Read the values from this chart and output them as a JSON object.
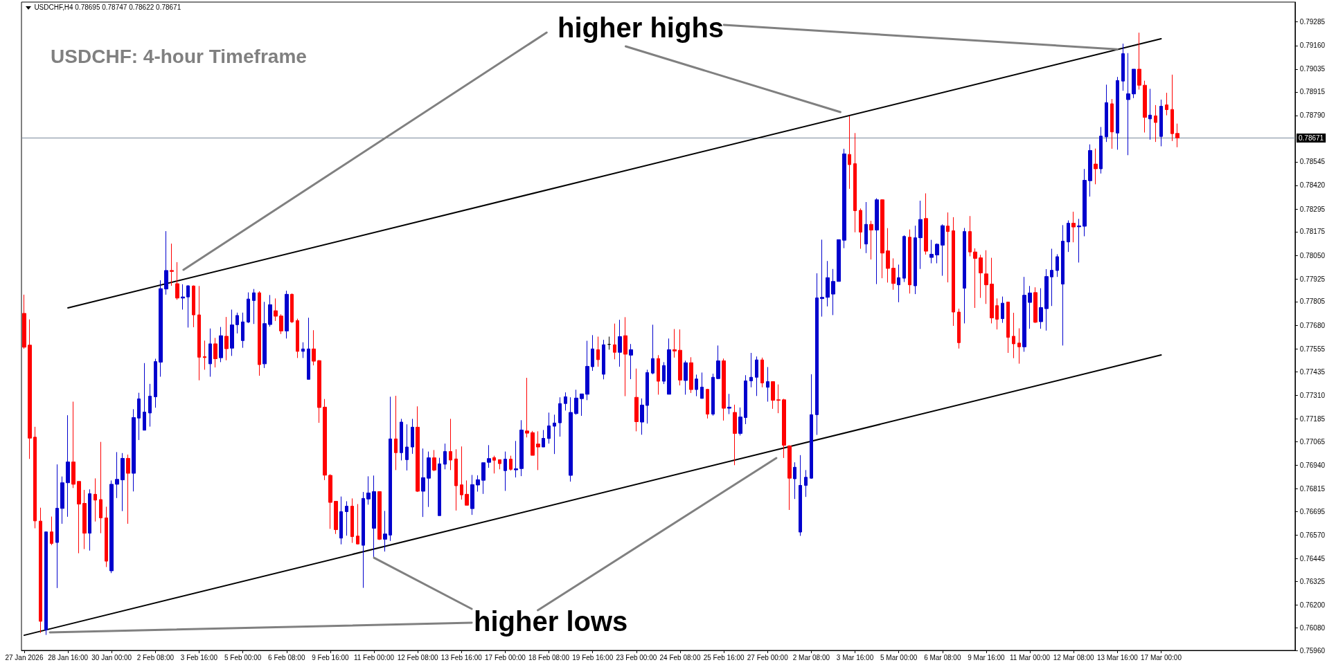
{
  "chart_data": {
    "type": "candlestick",
    "title": "USDCHF: 4-hour Timeframe",
    "annotations": [
      "USDCHF,H4 0.78695 0.78747 0.78622 0.78671",
      {
        "text": "higher highs",
        "x": "13 Mar 16:00",
        "y": 0.7914
      },
      {
        "text": "higher lows",
        "x": "11 Feb 00:00",
        "y": 0.7645
      }
    ],
    "categories": [
      "27 Jan 2026",
      null,
      null,
      null,
      null,
      null,
      null,
      null,
      "28 Jan 16:00",
      null,
      null,
      null,
      null,
      null,
      null,
      null,
      "30 Jan 00:00",
      null,
      null,
      null,
      null,
      null,
      null,
      null,
      "2 Feb 08:00",
      null,
      null,
      null,
      null,
      null,
      null,
      null,
      "3 Feb 16:00",
      null,
      null,
      null,
      null,
      null,
      null,
      null,
      "5 Feb 00:00",
      null,
      null,
      null,
      null,
      null,
      null,
      null,
      "6 Feb 08:00",
      null,
      null,
      null,
      null,
      null,
      null,
      null,
      "9 Feb 16:00",
      null,
      null,
      null,
      null,
      null,
      null,
      null,
      "11 Feb 00:00",
      null,
      null,
      null,
      null,
      null,
      null,
      null,
      "12 Feb 08:00",
      null,
      null,
      null,
      null,
      null,
      null,
      null,
      "13 Feb 16:00",
      null,
      null,
      null,
      null,
      null,
      null,
      null,
      "17 Feb 00:00",
      null,
      null,
      null,
      null,
      null,
      null,
      null,
      "18 Feb 08:00",
      null,
      null,
      null,
      null,
      null,
      null,
      null,
      "19 Feb 16:00",
      null,
      null,
      null,
      null,
      null,
      null,
      null,
      "23 Feb 00:00",
      null,
      null,
      null,
      null,
      null,
      null,
      null,
      "24 Feb 08:00",
      null,
      null,
      null,
      null,
      null,
      null,
      null,
      "25 Feb 16:00",
      null,
      null,
      null,
      null,
      null,
      null,
      null,
      "27 Feb 00:00",
      null,
      null,
      null,
      null,
      null,
      null,
      null,
      "2 Mar 08:00",
      null,
      null,
      null,
      null,
      null,
      null,
      null,
      "3 Mar 16:00",
      null,
      null,
      null,
      null,
      null,
      null,
      null,
      "5 Mar 00:00",
      null,
      null,
      null,
      null,
      null,
      null,
      null,
      "6 Mar 08:00",
      null,
      null,
      null,
      null,
      null,
      null,
      null,
      "9 Mar 16:00",
      null,
      null,
      null,
      null,
      null,
      null,
      null,
      "11 Mar 00:00",
      null,
      null,
      null,
      null,
      null,
      null,
      null,
      "12 Mar 08:00",
      null,
      null,
      null,
      null,
      null,
      null,
      null,
      "13 Mar 16:00",
      null,
      null,
      null,
      null,
      null,
      null,
      null,
      "17 Mar 00:00",
      null,
      null,
      null,
      null,
      null,
      null,
      null,
      null,
      null,
      null,
      null,
      null,
      null,
      null,
      null,
      null,
      null,
      null,
      null,
      null,
      null,
      null,
      null,
      null
    ],
    "ohlc": [
      [
        0.77743,
        0.77842,
        0.77556,
        0.77564
      ],
      [
        0.77575,
        0.77711,
        0.76973,
        0.77083
      ],
      [
        0.77088,
        0.77143,
        0.76606,
        0.76645
      ],
      [
        0.76644,
        0.76715,
        0.76053,
        0.76114
      ],
      [
        0.76068,
        0.76587,
        0.76042,
        0.76587
      ],
      [
        0.76587,
        0.76668,
        0.76517,
        0.76526
      ],
      [
        0.76531,
        0.76944,
        0.7629,
        0.76712
      ],
      [
        0.76711,
        0.7688,
        0.7663,
        0.76847
      ],
      [
        0.76847,
        0.77204,
        0.76667,
        0.76957
      ],
      [
        0.76957,
        0.77276,
        0.76819,
        0.76839
      ],
      [
        0.76854,
        0.76854,
        0.76474,
        0.76734
      ],
      [
        0.76738,
        0.76809,
        0.76496,
        0.7658
      ],
      [
        0.7658,
        0.76812,
        0.76488,
        0.76789
      ],
      [
        0.76786,
        0.7687,
        0.76642,
        0.76755
      ],
      [
        0.76758,
        0.77063,
        0.7658,
        0.76661
      ],
      [
        0.76661,
        0.7672,
        0.76401,
        0.76432
      ],
      [
        0.76381,
        0.76859,
        0.76369,
        0.76839
      ],
      [
        0.76839,
        0.77009,
        0.76766,
        0.76865
      ],
      [
        0.76862,
        0.77004,
        0.76697,
        0.76976
      ],
      [
        0.76976,
        0.76996,
        0.7663,
        0.76897
      ],
      [
        0.76897,
        0.77236,
        0.76801,
        0.77192
      ],
      [
        0.77189,
        0.77323,
        0.77073,
        0.77291
      ],
      [
        0.77125,
        0.7748,
        0.77125,
        0.77221
      ],
      [
        0.77216,
        0.7737,
        0.77144,
        0.77305
      ],
      [
        0.77302,
        0.77503,
        0.77244,
        0.77488
      ],
      [
        0.77485,
        0.77918,
        0.77408,
        0.77874
      ],
      [
        0.77872,
        0.78178,
        0.77842,
        0.7797
      ],
      [
        0.7797,
        0.78112,
        0.77889,
        0.77965
      ],
      [
        0.779,
        0.78014,
        0.77815,
        0.77824
      ],
      [
        0.77824,
        0.77897,
        0.77763,
        0.7783
      ],
      [
        0.7783,
        0.77891,
        0.77668,
        0.77889
      ],
      [
        0.77888,
        0.77891,
        0.7767,
        0.77735
      ],
      [
        0.77735,
        0.77888,
        0.77389,
        0.77511
      ],
      [
        0.77514,
        0.77599,
        0.77445,
        0.77509
      ],
      [
        0.77476,
        0.77663,
        0.77408,
        0.77582
      ],
      [
        0.77582,
        0.77613,
        0.77457,
        0.77503
      ],
      [
        0.77508,
        0.77671,
        0.77485,
        0.77625
      ],
      [
        0.77622,
        0.77724,
        0.77495,
        0.77556
      ],
      [
        0.77559,
        0.77763,
        0.77518,
        0.77682
      ],
      [
        0.77683,
        0.77747,
        0.77637,
        0.77732
      ],
      [
        0.77599,
        0.77747,
        0.77561,
        0.77698
      ],
      [
        0.77697,
        0.77854,
        0.77692,
        0.77819
      ],
      [
        0.77811,
        0.77872,
        0.77687,
        0.77852
      ],
      [
        0.77852,
        0.7786,
        0.77413,
        0.77472
      ],
      [
        0.77476,
        0.77804,
        0.77454,
        0.77689
      ],
      [
        0.77684,
        0.7784,
        0.77673,
        0.77789
      ],
      [
        0.77757,
        0.77822,
        0.77703,
        0.77728
      ],
      [
        0.77729,
        0.77738,
        0.77634,
        0.7765
      ],
      [
        0.7765,
        0.77863,
        0.7761,
        0.77844
      ],
      [
        0.77844,
        0.77848,
        0.77692,
        0.77698
      ],
      [
        0.77705,
        0.77715,
        0.77507,
        0.77542
      ],
      [
        0.77542,
        0.7759,
        0.77507,
        0.77555
      ],
      [
        0.77394,
        0.7772,
        0.77394,
        0.77555
      ],
      [
        0.77555,
        0.77654,
        0.77468,
        0.7749
      ],
      [
        0.77493,
        0.77496,
        0.77164,
        0.77245
      ],
      [
        0.77247,
        0.7729,
        0.76861,
        0.76887
      ],
      [
        0.76886,
        0.76892,
        0.76603,
        0.76743
      ],
      [
        0.76749,
        0.76749,
        0.76576,
        0.76599
      ],
      [
        0.76554,
        0.76774,
        0.76521,
        0.76694
      ],
      [
        0.76694,
        0.76749,
        0.76567,
        0.76723
      ],
      [
        0.76723,
        0.76764,
        0.76529,
        0.76562
      ],
      [
        0.76565,
        0.76734,
        0.76521,
        0.76523
      ],
      [
        0.76516,
        0.76798,
        0.76291,
        0.76764
      ],
      [
        0.76761,
        0.76881,
        0.76731,
        0.76793
      ],
      [
        0.76606,
        0.76885,
        0.7645,
        0.768
      ],
      [
        0.768,
        0.768,
        0.76544,
        0.76548
      ],
      [
        0.76548,
        0.76698,
        0.76483,
        0.76576
      ],
      [
        0.7657,
        0.77302,
        0.76539,
        0.77079
      ],
      [
        0.77079,
        0.77307,
        0.76914,
        0.77006
      ],
      [
        0.77006,
        0.77185,
        0.76965,
        0.77168
      ],
      [
        0.76969,
        0.77156,
        0.76912,
        0.77036
      ],
      [
        0.77036,
        0.77185,
        0.77,
        0.77141
      ],
      [
        0.77141,
        0.77251,
        0.76798,
        0.76802
      ],
      [
        0.76802,
        0.77028,
        0.76666,
        0.76874
      ],
      [
        0.76871,
        0.77012,
        0.76719,
        0.76979
      ],
      [
        0.76979,
        0.7702,
        0.76908,
        0.76914
      ],
      [
        0.76673,
        0.76979,
        0.76673,
        0.76947
      ],
      [
        0.76945,
        0.77054,
        0.76918,
        0.77012
      ],
      [
        0.77012,
        0.77185,
        0.76914,
        0.76967
      ],
      [
        0.76973,
        0.77024,
        0.767,
        0.76831
      ],
      [
        0.76836,
        0.77039,
        0.76758,
        0.76783
      ],
      [
        0.76786,
        0.76859,
        0.76728,
        0.76728
      ],
      [
        0.7671,
        0.76888,
        0.76677,
        0.76837
      ],
      [
        0.76835,
        0.76886,
        0.768,
        0.76863
      ],
      [
        0.7686,
        0.76953,
        0.76788,
        0.76953
      ],
      [
        0.76955,
        0.77046,
        0.76926,
        0.76975
      ],
      [
        0.7698,
        0.7699,
        0.76896,
        0.76966
      ],
      [
        0.76969,
        0.76969,
        0.76918,
        0.76948
      ],
      [
        0.76911,
        0.77012,
        0.76804,
        0.76972
      ],
      [
        0.76972,
        0.7699,
        0.76911,
        0.76918
      ],
      [
        0.76915,
        0.77068,
        0.76875,
        0.76921
      ],
      [
        0.76922,
        0.77178,
        0.76882,
        0.77126
      ],
      [
        0.77121,
        0.77402,
        0.77087,
        0.77109
      ],
      [
        0.77112,
        0.77121,
        0.76992,
        0.76992
      ],
      [
        0.77052,
        0.77119,
        0.76914,
        0.77036
      ],
      [
        0.77036,
        0.77126,
        0.77036,
        0.77082
      ],
      [
        0.77081,
        0.77218,
        0.77054,
        0.77148
      ],
      [
        0.77146,
        0.77207,
        0.76999,
        0.77163
      ],
      [
        0.77164,
        0.77299,
        0.77091,
        0.77266
      ],
      [
        0.77266,
        0.77325,
        0.77229,
        0.77302
      ],
      [
        0.76886,
        0.77299,
        0.76853,
        0.77219
      ],
      [
        0.77213,
        0.77339,
        0.77207,
        0.77295
      ],
      [
        0.77292,
        0.77317,
        0.77201,
        0.77317
      ],
      [
        0.77315,
        0.77598,
        0.77284,
        0.77463
      ],
      [
        0.77461,
        0.77628,
        0.77439,
        0.77555
      ],
      [
        0.77551,
        0.7762,
        0.77461,
        0.77498
      ],
      [
        0.77421,
        0.77603,
        0.77394,
        0.77577
      ],
      [
        0.77579,
        0.7762,
        0.77551,
        0.77579
      ],
      [
        0.77577,
        0.77689,
        0.775,
        0.77537
      ],
      [
        0.77537,
        0.77709,
        0.77461,
        0.7762
      ],
      [
        0.77625,
        0.77723,
        0.77305,
        0.77527
      ],
      [
        0.77522,
        0.77581,
        0.77395,
        0.77551
      ],
      [
        0.77299,
        0.77451,
        0.77119,
        0.7717
      ],
      [
        0.77168,
        0.77293,
        0.77101,
        0.77258
      ],
      [
        0.77256,
        0.77445,
        0.7716,
        0.7743
      ],
      [
        0.77427,
        0.77683,
        0.77421,
        0.77504
      ],
      [
        0.77504,
        0.77522,
        0.77313,
        0.77384
      ],
      [
        0.77384,
        0.77485,
        0.77369,
        0.77467
      ],
      [
        0.77315,
        0.7761,
        0.77315,
        0.77551
      ],
      [
        0.77551,
        0.7766,
        0.77509,
        0.77544
      ],
      [
        0.77548,
        0.77658,
        0.77362,
        0.7739
      ],
      [
        0.77388,
        0.77493,
        0.77313,
        0.77482
      ],
      [
        0.77482,
        0.77511,
        0.77322,
        0.7734
      ],
      [
        0.7734,
        0.77419,
        0.77305,
        0.77396
      ],
      [
        0.77293,
        0.7743,
        0.77293,
        0.77353
      ],
      [
        0.77341,
        0.77344,
        0.77187,
        0.7721
      ],
      [
        0.7721,
        0.77424,
        0.77202,
        0.77405
      ],
      [
        0.77398,
        0.77573,
        0.77395,
        0.77492
      ],
      [
        0.77492,
        0.77504,
        0.77176,
        0.77241
      ],
      [
        0.77241,
        0.77317,
        0.7721,
        0.77247
      ],
      [
        0.77219,
        0.7726,
        0.7694,
        0.77108
      ],
      [
        0.77108,
        0.77245,
        0.77097,
        0.77195
      ],
      [
        0.77192,
        0.77416,
        0.77157,
        0.77386
      ],
      [
        0.77386,
        0.77534,
        0.77352,
        0.77405
      ],
      [
        0.77405,
        0.77515,
        0.77306,
        0.77497
      ],
      [
        0.77497,
        0.77509,
        0.77352,
        0.77375
      ],
      [
        0.77352,
        0.77459,
        0.77276,
        0.77382
      ],
      [
        0.77382,
        0.77382,
        0.77238,
        0.77283
      ],
      [
        0.77286,
        0.77367,
        0.77215,
        0.77283
      ],
      [
        0.77286,
        0.77291,
        0.76978,
        0.77045
      ],
      [
        0.77042,
        0.77045,
        0.76703,
        0.76871
      ],
      [
        0.76868,
        0.76955,
        0.76761,
        0.76929
      ],
      [
        0.76586,
        0.76993,
        0.76566,
        0.76833
      ],
      [
        0.76833,
        0.76914,
        0.76772,
        0.76876
      ],
      [
        0.76871,
        0.77421,
        0.76868,
        0.77207
      ],
      [
        0.77207,
        0.77955,
        0.771,
        0.77825
      ],
      [
        0.77821,
        0.78133,
        0.77726,
        0.77828
      ],
      [
        0.77828,
        0.7802,
        0.7778,
        0.77932
      ],
      [
        0.77845,
        0.77978,
        0.77734,
        0.77912
      ],
      [
        0.77912,
        0.78133,
        0.77912,
        0.78133
      ],
      [
        0.7813,
        0.78614,
        0.78088,
        0.78587
      ],
      [
        0.78584,
        0.78787,
        0.78402,
        0.7853
      ],
      [
        0.78535,
        0.78697,
        0.78172,
        0.78286
      ],
      [
        0.78288,
        0.78298,
        0.78085,
        0.78173
      ],
      [
        0.7811,
        0.78332,
        0.78062,
        0.78214
      ],
      [
        0.78214,
        0.78233,
        0.78028,
        0.78184
      ],
      [
        0.78184,
        0.78352,
        0.77898,
        0.78344
      ],
      [
        0.78344,
        0.78347,
        0.77929,
        0.78062
      ],
      [
        0.78074,
        0.78194,
        0.77906,
        0.77981
      ],
      [
        0.77982,
        0.78034,
        0.77868,
        0.77901
      ],
      [
        0.77894,
        0.78001,
        0.77802,
        0.77932
      ],
      [
        0.77929,
        0.78156,
        0.77909,
        0.7815
      ],
      [
        0.78146,
        0.78187,
        0.77848,
        0.77894
      ],
      [
        0.77889,
        0.78207,
        0.77845,
        0.78143
      ],
      [
        0.78143,
        0.78339,
        0.77978,
        0.7824
      ],
      [
        0.78245,
        0.78378,
        0.78054,
        0.78072
      ],
      [
        0.78039,
        0.78132,
        0.78008,
        0.78056
      ],
      [
        0.78052,
        0.78113,
        0.78008,
        0.78109
      ],
      [
        0.78104,
        0.78214,
        0.77942,
        0.78207
      ],
      [
        0.78205,
        0.78277,
        0.77907,
        0.78176
      ],
      [
        0.7818,
        0.78252,
        0.77677,
        0.7775
      ],
      [
        0.7775,
        0.77768,
        0.77557,
        0.77588
      ],
      [
        0.77876,
        0.78195,
        0.7769,
        0.78176
      ],
      [
        0.78176,
        0.78258,
        0.78045,
        0.78068
      ],
      [
        0.78068,
        0.78087,
        0.77772,
        0.78034
      ],
      [
        0.78037,
        0.78053,
        0.77825,
        0.77957
      ],
      [
        0.77952,
        0.78077,
        0.77793,
        0.77894
      ],
      [
        0.77898,
        0.78037,
        0.7769,
        0.77719
      ],
      [
        0.77784,
        0.77822,
        0.77658,
        0.77712
      ],
      [
        0.77715,
        0.77832,
        0.77693,
        0.77797
      ],
      [
        0.77803,
        0.77803,
        0.77534,
        0.77616
      ],
      [
        0.77622,
        0.77746,
        0.77506,
        0.77582
      ],
      [
        0.77586,
        0.77664,
        0.77477,
        0.77566
      ],
      [
        0.77566,
        0.77936,
        0.7754,
        0.77839
      ],
      [
        0.77801,
        0.77888,
        0.77662,
        0.77851
      ],
      [
        0.77853,
        0.77881,
        0.77692,
        0.77696
      ],
      [
        0.77699,
        0.77876,
        0.77662,
        0.77774
      ],
      [
        0.77768,
        0.77977,
        0.77652,
        0.77938
      ],
      [
        0.77936,
        0.78085,
        0.77782,
        0.77971
      ],
      [
        0.7797,
        0.78056,
        0.77936,
        0.78043
      ],
      [
        0.77898,
        0.7821,
        0.77573,
        0.78125
      ],
      [
        0.78121,
        0.78235,
        0.78068,
        0.7822
      ],
      [
        0.7822,
        0.78281,
        0.78119,
        0.782
      ],
      [
        0.78201,
        0.78243,
        0.78012,
        0.78206
      ],
      [
        0.78204,
        0.78507,
        0.78151,
        0.78447
      ],
      [
        0.78445,
        0.78637,
        0.78361,
        0.78605
      ],
      [
        0.78533,
        0.78615,
        0.78426,
        0.78508
      ],
      [
        0.78508,
        0.78729,
        0.78483,
        0.78681
      ],
      [
        0.78677,
        0.78953,
        0.7865,
        0.78858
      ],
      [
        0.78852,
        0.78877,
        0.78614,
        0.78703
      ],
      [
        0.78697,
        0.78994,
        0.78609,
        0.78975
      ],
      [
        0.78972,
        0.7917,
        0.78921,
        0.79117
      ],
      [
        0.78874,
        0.7912,
        0.7858,
        0.78905
      ],
      [
        0.78904,
        0.79035,
        0.78882,
        0.79035
      ],
      [
        0.79035,
        0.79228,
        0.78927,
        0.7895
      ],
      [
        0.7895,
        0.78974,
        0.787,
        0.7878
      ],
      [
        0.78772,
        0.78931,
        0.78662,
        0.78792
      ],
      [
        0.78788,
        0.78845,
        0.7865,
        0.78753
      ],
      [
        0.78679,
        0.78874,
        0.78627,
        0.78839
      ],
      [
        0.78846,
        0.7891,
        0.78791,
        0.78821
      ],
      [
        0.78822,
        0.79006,
        0.78655,
        0.78694
      ],
      [
        0.78695,
        0.78747,
        0.78622,
        0.78671
      ],
      null,
      null,
      null,
      null,
      null,
      null,
      null,
      null,
      null,
      null,
      null,
      null,
      null,
      null,
      null,
      null,
      null,
      null,
      null,
      null,
      null
    ],
    "colors": [
      "#ff0000",
      "#ff0000",
      "#ff0000",
      "#ff0000",
      "#0000cd",
      "#ff0000",
      "#0000cd",
      "#0000cd",
      "#0000cd",
      "#ff0000",
      "#ff0000",
      "#ff0000",
      "#0000cd",
      "#ff0000",
      "#ff0000",
      "#ff0000",
      "#0000cd",
      "#0000cd",
      "#0000cd",
      "#ff0000",
      "#0000cd",
      "#0000cd",
      "#0000cd",
      "#0000cd",
      "#0000cd",
      "#0000cd",
      "#0000cd",
      "#ff0000",
      "#ff0000",
      "#0000cd",
      "#0000cd",
      "#ff0000",
      "#ff0000",
      "#ff0000",
      "#0000cd",
      "#ff0000",
      "#0000cd",
      "#ff0000",
      "#0000cd",
      "#0000cd",
      "#0000cd",
      "#0000cd",
      "#0000cd",
      "#ff0000",
      "#0000cd",
      "#0000cd",
      "#ff0000",
      "#ff0000",
      "#0000cd",
      "#ff0000",
      "#ff0000",
      "#0000cd",
      "#0000cd",
      "#ff0000",
      "#ff0000",
      "#ff0000",
      "#ff0000",
      "#ff0000",
      "#0000cd",
      "#0000cd",
      "#ff0000",
      "#ff0000",
      "#0000cd",
      "#0000cd",
      "#0000cd",
      "#ff0000",
      "#0000cd",
      "#0000cd",
      "#ff0000",
      "#0000cd",
      "#0000cd",
      "#0000cd",
      "#ff0000",
      "#0000cd",
      "#0000cd",
      "#ff0000",
      "#0000cd",
      "#0000cd",
      "#ff0000",
      "#ff0000",
      "#ff0000",
      "#ff0000",
      "#0000cd",
      "#0000cd",
      "#0000cd",
      "#0000cd",
      "#ff0000",
      "#ff0000",
      "#0000cd",
      "#ff0000",
      "#0000cd",
      "#0000cd",
      "#ff0000",
      "#ff0000",
      "#ff0000",
      "#0000cd",
      "#0000cd",
      "#0000cd",
      "#0000cd",
      "#0000cd",
      "#0000cd",
      "#0000cd",
      "#0000cd",
      "#0000cd",
      "#0000cd",
      "#ff0000",
      "#0000cd",
      "#000000",
      "#ff0000",
      "#0000cd",
      "#ff0000",
      "#0000cd",
      "#ff0000",
      "#0000cd",
      "#0000cd",
      "#0000cd",
      "#ff0000",
      "#0000cd",
      "#0000cd",
      "#ff0000",
      "#ff0000",
      "#0000cd",
      "#ff0000",
      "#0000cd",
      "#0000cd",
      "#ff0000",
      "#0000cd",
      "#0000cd",
      "#ff0000",
      "#0000cd",
      "#ff0000",
      "#0000cd",
      "#0000cd",
      "#0000cd",
      "#0000cd",
      "#ff0000",
      "#0000cd",
      "#ff0000",
      "#ff0000",
      "#ff0000",
      "#ff0000",
      "#0000cd",
      "#0000cd",
      "#0000cd",
      "#0000cd",
      "#0000cd",
      "#0000cd",
      "#0000cd",
      "#0000cd",
      "#0000cd",
      "#0000cd",
      "#ff0000",
      "#ff0000",
      "#ff0000",
      "#0000cd",
      "#ff0000",
      "#0000cd",
      "#ff0000",
      "#ff0000",
      "#ff0000",
      "#0000cd",
      "#0000cd",
      "#ff0000",
      "#0000cd",
      "#0000cd",
      "#ff0000",
      "#0000cd",
      "#0000cd",
      "#0000cd",
      "#ff0000",
      "#ff0000",
      "#ff0000",
      "#0000cd",
      "#ff0000",
      "#ff0000",
      "#ff0000",
      "#ff0000",
      "#ff0000",
      "#ff0000",
      "#0000cd",
      "#ff0000",
      "#ff0000",
      "#ff0000",
      "#0000cd",
      "#0000cd",
      "#ff0000",
      "#0000cd",
      "#0000cd",
      "#0000cd",
      "#0000cd",
      "#0000cd",
      "#0000cd",
      "#ff0000",
      "#0000cd",
      "#0000cd",
      "#0000cd",
      "#ff0000",
      "#0000cd",
      "#0000cd",
      "#ff0000",
      "#0000cd",
      "#0000cd",
      "#0000cd",
      "#0000cd",
      "#ff0000",
      "#ff0000",
      "#0000cd",
      "#ff0000",
      "#0000cd",
      "#ff0000",
      "#ff0000",
      "#ff0000",
      null,
      null,
      null,
      null,
      null,
      null,
      null,
      null,
      null,
      null,
      null,
      null,
      null,
      null,
      null,
      null,
      null,
      null,
      null,
      null,
      null
    ],
    "series": [
      {
        "type": "line",
        "x": [
          "28 Jan 16:00",
          "17 Mar 00:00"
        ],
        "values": [
          0.77772,
          0.79196
        ],
        "color": "#000000"
      },
      {
        "type": "line",
        "x": [
          "27 Jan 2026",
          "17 Mar 00:00"
        ],
        "values": [
          0.7604,
          0.77523
        ],
        "color": "#000000"
      }
    ],
    "ylim": [
      0.7596,
      0.7939
    ],
    "yticks": [
      0.79285,
      {
        "value": 0.7916,
        "label": "0.79160"
      },
      0.79035,
      0.78915,
      {
        "value": 0.7879,
        "label": "0.78790"
      },
      0.78545,
      {
        "value": 0.7842,
        "label": "0.78420"
      },
      0.78295,
      0.78175,
      {
        "value": 0.7805,
        "label": "0.78050"
      },
      0.77925,
      0.77805,
      {
        "value": 0.7768,
        "label": "0.77680"
      },
      0.77555,
      0.77435,
      {
        "value": 0.7731,
        "label": "0.77310"
      },
      0.77185,
      0.77065,
      {
        "value": 0.7694,
        "label": "0.76940"
      },
      0.76815,
      0.76695,
      {
        "value": 0.7657,
        "label": "0.76570"
      },
      0.76445,
      0.76325,
      {
        "value": 0.762,
        "label": "0.76200"
      },
      {
        "value": 0.7608,
        "label": "0.76080"
      },
      {
        "value": 0.7596,
        "label": "0.75960"
      }
    ],
    "ref_lines": [
      {
        "axis": "y",
        "value": 0.78671,
        "label": "0.78671",
        "color": "#778899"
      }
    ],
    "grid": false,
    "marker": "none",
    "line_style": "solid"
  }
}
